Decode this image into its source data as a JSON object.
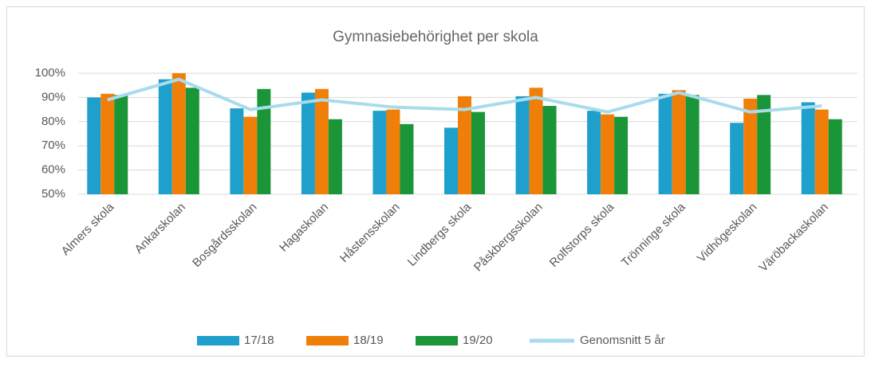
{
  "chart_data": {
    "type": "bar",
    "title": "Gymnasiebehörighet per skola",
    "categories": [
      "Almers skola",
      "Ankarskolan",
      "Bosgårdsskolan",
      "Hagaskolan",
      "Håstensskolan",
      "Lindbergs skola",
      "Påskbergsskolan",
      "Rolfstorps skola",
      "Trönninge skola",
      "Vidhögeskolan",
      "Väröbackaskolan"
    ],
    "series": [
      {
        "name": "17/18",
        "color": "#1fa0cc",
        "values": [
          90,
          97.5,
          85.5,
          92,
          84.5,
          77.5,
          90.5,
          84.5,
          91.5,
          79.5,
          88
        ]
      },
      {
        "name": "18/19",
        "color": "#f07f09",
        "values": [
          91.5,
          100,
          82,
          93.5,
          85,
          90.5,
          94,
          83,
          93,
          89.5,
          85
        ]
      },
      {
        "name": "19/20",
        "color": "#1a9639",
        "values": [
          91,
          94,
          93.5,
          81,
          79,
          84,
          86.5,
          82,
          91,
          91,
          81
        ]
      },
      {
        "name": "Genomsnitt 5 år",
        "color": "#a8dcec",
        "type": "line",
        "values": [
          89,
          97.5,
          85,
          89,
          86,
          85,
          90,
          84,
          92,
          84,
          86.5
        ]
      }
    ],
    "ylim": [
      50,
      100
    ],
    "yticks": [
      {
        "value": 50,
        "label": "50%"
      },
      {
        "value": 60,
        "label": "60%"
      },
      {
        "value": 70,
        "label": "70%"
      },
      {
        "value": 80,
        "label": "80%"
      },
      {
        "value": 90,
        "label": "90%"
      },
      {
        "value": 100,
        "label": "100%"
      }
    ],
    "grid": true,
    "legend": "bottom"
  }
}
